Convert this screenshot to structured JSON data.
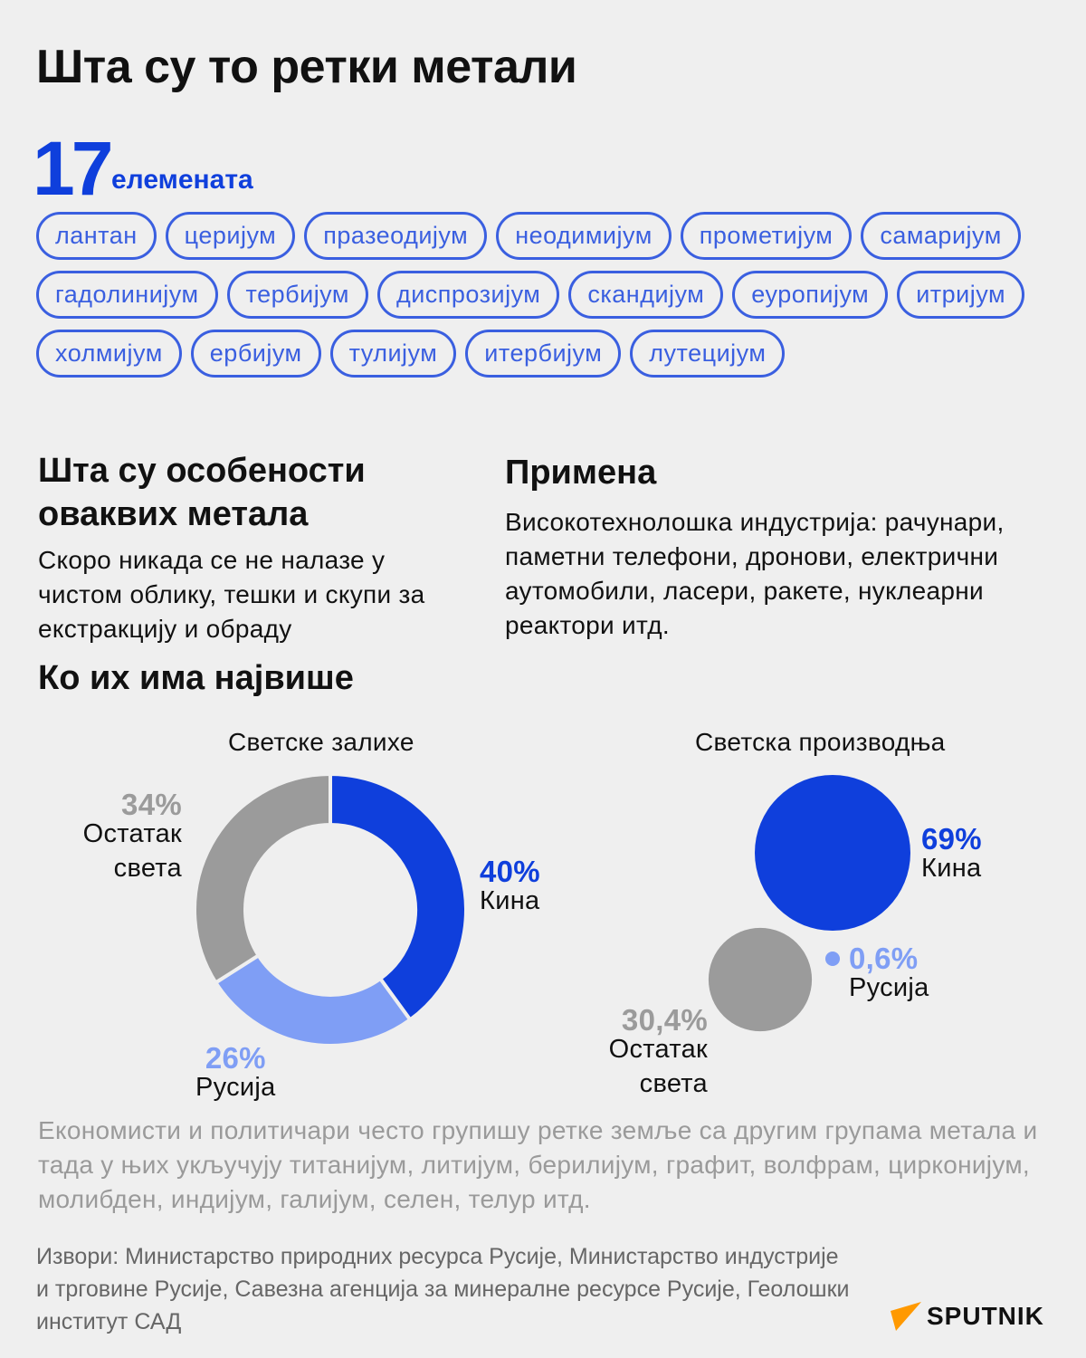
{
  "title": "Шта су то ретки метали",
  "count": {
    "value": "17",
    "label": "елемената"
  },
  "elements": [
    "лантан",
    "церијум",
    "празеодијум",
    "неодимијум",
    "прометијум",
    "самаријум",
    "гадолинијум",
    "тербијум",
    "диспрозијум",
    "скандијум",
    "еуропијум",
    "итријум",
    "холмијум",
    "ербијум",
    "тулијум",
    "итербијум",
    "лутецијум"
  ],
  "features": {
    "heading": "Шта су особености оваквих метала",
    "text": "Скоро никада се не налазе у чистом облику, тешки и скупи за екстракцију и обраду"
  },
  "application": {
    "heading": "Примена",
    "text": "Високотехнолошка индустрија: рачунари, паметни телефони, дронови, електрични аутомобили, ласери, ракете, нуклеарни реактори итд."
  },
  "who_heading": "Ко их има највише",
  "chart_data": [
    {
      "type": "pie",
      "title": "Светске залихе",
      "donut": true,
      "slices": [
        {
          "label": "Кина",
          "value": 40,
          "display": "40%",
          "color": "#0f3fdc"
        },
        {
          "label": "Русија",
          "value": 26,
          "display": "26%",
          "color": "#7f9ef5"
        },
        {
          "label": "Остатак света",
          "value": 34,
          "display": "34%",
          "color": "#9b9b9b"
        }
      ]
    },
    {
      "type": "bubble",
      "title": "Светска производња",
      "slices": [
        {
          "label": "Кина",
          "value": 69,
          "display": "69%",
          "color": "#0f3fdc"
        },
        {
          "label": "Русија",
          "value": 0.6,
          "display": "0,6%",
          "color": "#7f9ef5"
        },
        {
          "label": "Остатак света",
          "value": 30.4,
          "display": "30,4%",
          "color": "#9b9b9b"
        }
      ]
    }
  ],
  "labels": {
    "rest_line1": "Остатак",
    "rest_line2": "света"
  },
  "note": "Економисти и политичари често групишу ретке земље са другим групама метала и тада у њих укључују титанијум, литијум, берилијум, графит, волфрам, цирконијум, молибден, индијум, галијум, селен, телур итд.",
  "sources": "Извори: Министарство природних ресурса Русије, Министарство индустрије и трговине Русије, Савезна агенција за минералне ресурсе Русије, Геолошки институт САД",
  "logo": "SPUTNIK"
}
